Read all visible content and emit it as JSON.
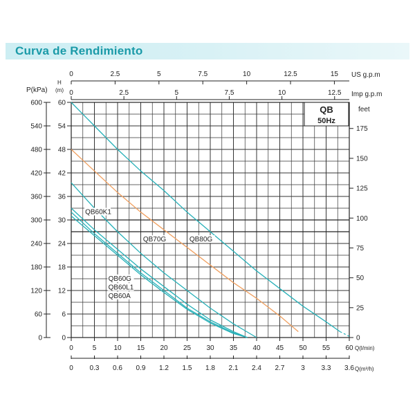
{
  "banner": {
    "title": "Curva de Rendimiento"
  },
  "model": {
    "name": "QB",
    "frequency": "50Hz"
  },
  "axes": {
    "pressure_label": "P(kPa)",
    "head_label_h": "H",
    "head_label_m": "(m)",
    "feet_label": "feet",
    "us_gpm_label": "US  g.p.m",
    "imp_gpm_label": "Imp  g.p.m",
    "flow_lmin_label": "Q(l/min)",
    "flow_m3h_label": "Q(m³/h)"
  },
  "chart_data": {
    "type": "line",
    "title": "Curva de Rendimiento",
    "xlabel": "Q(l/min)",
    "ylabel": "H (m)",
    "xlim": [
      0,
      60
    ],
    "ylim": [
      0,
      60
    ],
    "grid": true,
    "x_ticks": [
      0,
      5,
      10,
      15,
      20,
      25,
      30,
      35,
      40,
      45,
      50,
      55,
      60
    ],
    "x_tick_labels": [
      "0",
      "5",
      "10",
      "15",
      "20",
      "25",
      "30",
      "35",
      "40",
      "45",
      "50",
      "55",
      "60"
    ],
    "y_ticks": [
      0,
      6,
      12,
      18,
      24,
      30,
      36,
      42,
      48,
      54,
      60
    ],
    "y_tick_labels": [
      "0",
      "6",
      "12",
      "18",
      "24",
      "30",
      "36",
      "42",
      "48",
      "54",
      "60"
    ],
    "pressure_ticks": [
      0,
      60,
      120,
      180,
      240,
      300,
      360,
      420,
      480,
      540,
      600
    ],
    "pressure_tick_labels": [
      "0",
      "60",
      "120",
      "180",
      "240",
      "300",
      "360",
      "420",
      "480",
      "540",
      "600"
    ],
    "feet_ticks": [
      0,
      25,
      50,
      75,
      100,
      125,
      150,
      175
    ],
    "feet_tick_labels": [
      "0",
      "25",
      "50",
      "75",
      "100",
      "125",
      "150",
      "175"
    ],
    "m3h_ticks": [
      0,
      0.3,
      0.6,
      0.9,
      1.2,
      1.5,
      1.8,
      2.1,
      2.4,
      2.7,
      3,
      3.3,
      3.6
    ],
    "m3h_tick_labels": [
      "0",
      "0.3",
      "0.6",
      "0.9",
      "1.2",
      "1.5",
      "1.8",
      "2.1",
      "2.4",
      "2.7",
      "3",
      "3.3",
      "3.6"
    ],
    "us_gpm_ticks": [
      0,
      2.5,
      5,
      7.5,
      10,
      12.5,
      15
    ],
    "us_gpm_tick_labels": [
      "0",
      "2.5",
      "5",
      "7.5",
      "10",
      "12.5",
      "15"
    ],
    "imp_gpm_ticks": [
      0,
      2.5,
      5,
      7.5,
      10,
      12.5
    ],
    "imp_gpm_tick_labels": [
      "0",
      "2.5",
      "5",
      "7.5",
      "10",
      "12.5"
    ],
    "series": [
      {
        "name": "QB60K1",
        "color": "#26b0b8",
        "x": [
          0,
          5,
          10,
          15,
          20,
          25,
          30,
          35,
          38
        ],
        "y": [
          33,
          27.5,
          22.5,
          17.5,
          13,
          8.5,
          4.5,
          1.5,
          0
        ]
      },
      {
        "name": "QB60G",
        "color": "#26b0b8",
        "x": [
          0,
          5,
          10,
          15,
          20,
          25,
          30,
          35,
          38
        ],
        "y": [
          32,
          26.5,
          21.5,
          16.5,
          12,
          7.5,
          4,
          1.2,
          0
        ]
      },
      {
        "name": "QB60L1",
        "color": "#26b0b8",
        "x": [
          0,
          5,
          10,
          15,
          20,
          25,
          30,
          35,
          38
        ],
        "y": [
          31,
          26,
          21,
          16,
          11.5,
          7.2,
          3.7,
          1,
          0
        ]
      },
      {
        "name": "QB60A",
        "color": "#26b0b8",
        "x": [
          0,
          5,
          10,
          15,
          20,
          25,
          30,
          35,
          40
        ],
        "y": [
          39.5,
          33,
          27,
          21.5,
          16.5,
          12,
          7.5,
          3.5,
          0
        ]
      },
      {
        "name": "QB70G",
        "color": "#f0a060",
        "x": [
          0,
          5,
          10,
          15,
          20,
          25,
          30,
          35,
          40,
          45,
          49
        ],
        "y": [
          48,
          42.5,
          37,
          32,
          27.5,
          23,
          18.5,
          14,
          10,
          5.5,
          1.5
        ]
      },
      {
        "name": "QB80G",
        "color": "#26b0b8",
        "x": [
          0,
          5,
          10,
          15,
          20,
          25,
          30,
          35,
          40,
          45,
          50,
          55,
          58
        ],
        "y": [
          60,
          54,
          48,
          42.5,
          37.5,
          32,
          27,
          22,
          17,
          12.5,
          8,
          4,
          1.5
        ]
      }
    ]
  },
  "curve_labels": [
    {
      "text": "QB60K1",
      "series": "QB60K1"
    },
    {
      "text": "QB70G",
      "series": "QB70G"
    },
    {
      "text": "QB80G",
      "series": "QB80G"
    },
    {
      "text": "QB60G",
      "series": "QB60G"
    },
    {
      "text": "QB60L1",
      "series": "QB60L1"
    },
    {
      "text": "QB60A",
      "series": "QB60A"
    }
  ]
}
